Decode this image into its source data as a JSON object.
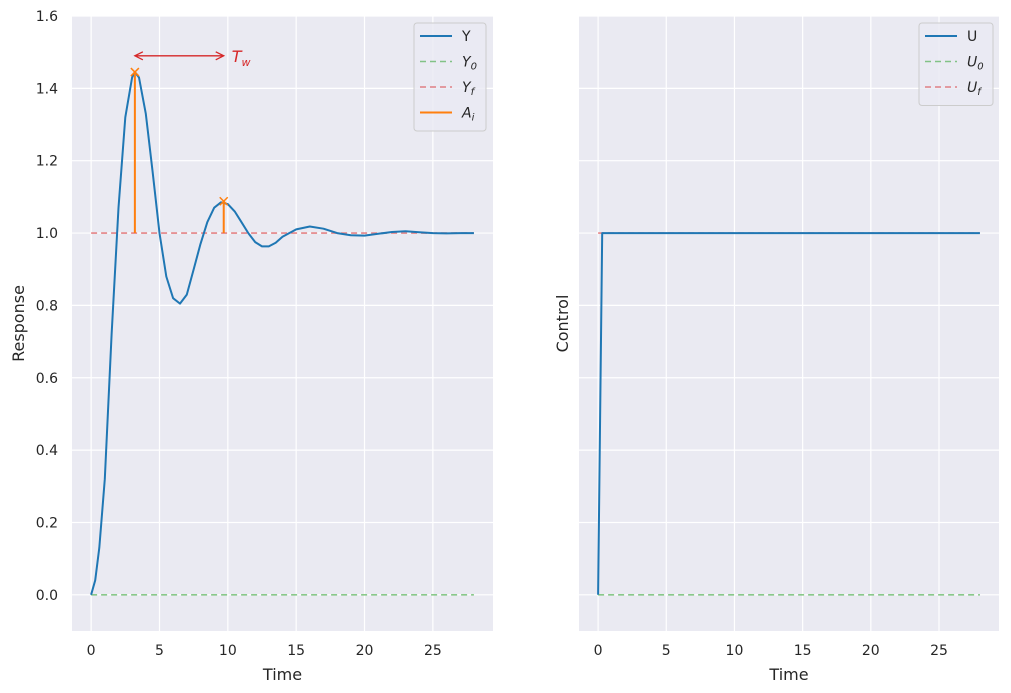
{
  "chart_data": [
    {
      "type": "line",
      "title": "",
      "xlabel": "Time",
      "ylabel": "Response",
      "xlim": [
        -1.4,
        29.4
      ],
      "ylim": [
        -0.1,
        1.6
      ],
      "xticks": [
        0,
        5,
        10,
        15,
        20,
        25
      ],
      "yticks": [
        0.0,
        0.2,
        0.4,
        0.6,
        0.8,
        1.0,
        1.2,
        1.4,
        1.6
      ],
      "grid": true,
      "legend_position": "upper right",
      "colors": {
        "Y": "#1f77b4",
        "Y0": "#2ca02c",
        "Yf": "#d62728",
        "Ai": "#ff7f0e",
        "Tw": "#d62728"
      },
      "series": [
        {
          "key": "Y",
          "name": "Y",
          "style": "solid",
          "x": [
            0,
            0.3,
            0.6,
            1,
            1.5,
            2,
            2.5,
            3,
            3.2,
            3.5,
            4,
            4.5,
            5,
            5.5,
            6,
            6.5,
            7,
            7.5,
            8,
            8.5,
            9,
            9.5,
            10,
            10.5,
            11,
            11.5,
            12,
            12.5,
            13,
            13.5,
            14,
            15,
            16,
            17,
            18,
            19,
            20,
            21,
            22,
            23,
            24,
            25,
            26,
            27,
            28
          ],
          "y": [
            0,
            0.04,
            0.13,
            0.32,
            0.72,
            1.07,
            1.32,
            1.43,
            1.445,
            1.43,
            1.33,
            1.17,
            1.0,
            0.88,
            0.82,
            0.805,
            0.83,
            0.9,
            0.97,
            1.03,
            1.07,
            1.085,
            1.08,
            1.06,
            1.03,
            1.0,
            0.975,
            0.963,
            0.963,
            0.973,
            0.99,
            1.01,
            1.018,
            1.012,
            1.0,
            0.994,
            0.993,
            0.998,
            1.003,
            1.005,
            1.002,
            1.0,
            0.999,
            1.0,
            1.0
          ]
        },
        {
          "key": "Y0",
          "name": "Y_0",
          "style": "dashed",
          "x": [
            0,
            28
          ],
          "y": [
            0,
            0
          ]
        },
        {
          "key": "Yf",
          "name": "Y_f",
          "style": "dashed",
          "x": [
            0,
            28
          ],
          "y": [
            1,
            1
          ]
        },
        {
          "key": "Ai",
          "name": "A_i",
          "style": "solid",
          "segments": [
            {
              "x": 3.2,
              "y0": 1.0,
              "y1": 1.445
            },
            {
              "x": 9.7,
              "y0": 1.0,
              "y1": 1.088
            }
          ]
        }
      ],
      "peaks": [
        {
          "x": 3.2,
          "y": 1.445
        },
        {
          "x": 9.7,
          "y": 1.088
        }
      ],
      "annotation": {
        "text_main": "T",
        "text_sub": "w",
        "x_start": 3.2,
        "x_end": 9.7,
        "y": 1.49
      }
    },
    {
      "type": "line",
      "title": "",
      "xlabel": "Time",
      "ylabel": "Control",
      "xlim": [
        -1.4,
        29.4
      ],
      "ylim": [
        -0.1,
        1.6
      ],
      "xticks": [
        0,
        5,
        10,
        15,
        20,
        25
      ],
      "yticks": [
        0.0,
        0.2,
        0.4,
        0.6,
        0.8,
        1.0,
        1.2,
        1.4,
        1.6
      ],
      "grid": true,
      "legend_position": "upper right",
      "colors": {
        "U": "#1f77b4",
        "U0": "#2ca02c",
        "Uf": "#d62728"
      },
      "series": [
        {
          "key": "U",
          "name": "U",
          "style": "solid",
          "x": [
            0,
            0.3,
            28
          ],
          "y": [
            0,
            1,
            1
          ]
        },
        {
          "key": "U0",
          "name": "U_0",
          "style": "dashed",
          "x": [
            0,
            28
          ],
          "y": [
            0,
            0
          ]
        },
        {
          "key": "Uf",
          "name": "U_f",
          "style": "dashed",
          "x": [
            0,
            28
          ],
          "y": [
            1,
            1
          ]
        }
      ]
    }
  ],
  "legends": [
    [
      {
        "key": "Y",
        "main": "Y",
        "sub": "",
        "style": "solid",
        "color": "#1f77b4",
        "italic": false
      },
      {
        "key": "Y0",
        "main": "Y",
        "sub": "0",
        "style": "dashed",
        "color": "#2ca02c",
        "italic": true
      },
      {
        "key": "Yf",
        "main": "Y",
        "sub": "f",
        "style": "dashed",
        "color": "#d62728",
        "italic": true
      },
      {
        "key": "Ai",
        "main": "A",
        "sub": "i",
        "style": "solid",
        "color": "#ff7f0e",
        "italic": true
      }
    ],
    [
      {
        "key": "U",
        "main": "U",
        "sub": "",
        "style": "solid",
        "color": "#1f77b4",
        "italic": false
      },
      {
        "key": "U0",
        "main": "U",
        "sub": "0",
        "style": "dashed",
        "color": "#2ca02c",
        "italic": true
      },
      {
        "key": "Uf",
        "main": "U",
        "sub": "f",
        "style": "dashed",
        "color": "#d62728",
        "italic": true
      }
    ]
  ],
  "theme": {
    "axes_bg": "#eaeaf2",
    "grid": "#ffffff",
    "text": "#262626"
  }
}
